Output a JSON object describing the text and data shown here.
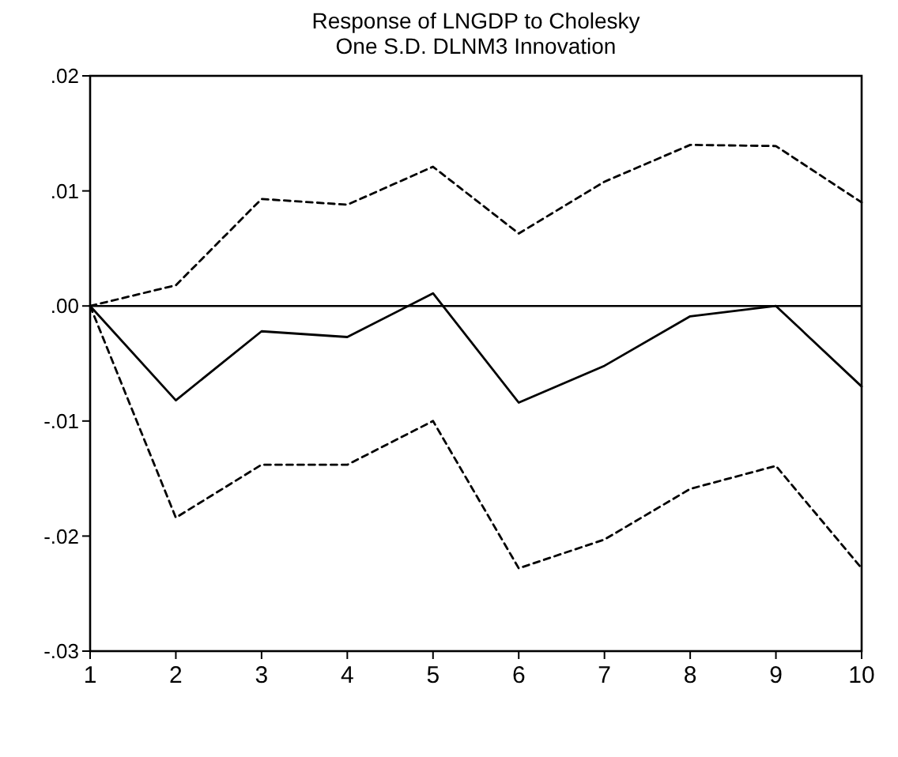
{
  "chart_data": {
    "type": "line",
    "title": "Response of LNGDP to Cholesky\nOne S.D. DLNM3 Innovation",
    "x": [
      1,
      2,
      3,
      4,
      5,
      6,
      7,
      8,
      9,
      10
    ],
    "xlim": [
      1,
      10
    ],
    "xticks": [
      1,
      2,
      3,
      4,
      5,
      6,
      7,
      8,
      9,
      10
    ],
    "ylim": [
      -0.03,
      0.02
    ],
    "yticks": [
      {
        "value": -0.03,
        "label": "-.03"
      },
      {
        "value": -0.02,
        "label": "-.02"
      },
      {
        "value": -0.01,
        "label": "-.01"
      },
      {
        "value": 0,
        "label": ".00"
      },
      {
        "value": 0.01,
        "label": ".01"
      },
      {
        "value": 0.02,
        "label": ".02"
      }
    ],
    "grid": false,
    "series": [
      {
        "color": "#000000",
        "line_style": "solid",
        "values": [
          0,
          -0.0082,
          -0.0022,
          -0.0027,
          0.0011,
          -0.0084,
          -0.0052,
          -0.0009,
          0,
          -0.007
        ]
      },
      {
        "color": "#000000",
        "line_style": "dashed",
        "values": [
          0,
          0.0018,
          0.0093,
          0.0088,
          0.0121,
          0.0063,
          0.0108,
          0.014,
          0.0139,
          0.009
        ]
      },
      {
        "color": "#000000",
        "line_style": "dashed",
        "values": [
          0,
          -0.0184,
          -0.0138,
          -0.0138,
          -0.01,
          -0.0228,
          -0.0203,
          -0.0159,
          -0.0139,
          -0.0228
        ]
      }
    ],
    "ref_lines": [
      {
        "axis": "y",
        "value": 0,
        "color": "#000000"
      }
    ]
  }
}
